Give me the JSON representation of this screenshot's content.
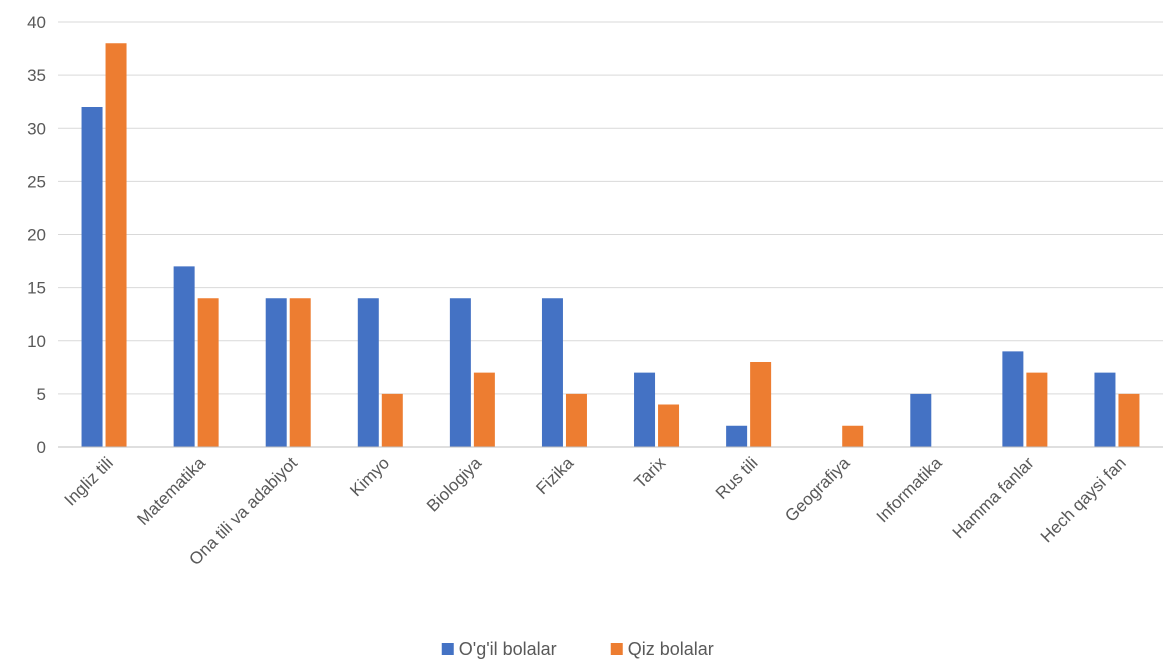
{
  "chart_data": {
    "type": "bar",
    "title": "",
    "xlabel": "",
    "ylabel": "",
    "ylim": [
      0,
      40
    ],
    "ytick_step": 5,
    "grid": true,
    "legend_position": "bottom",
    "categories": [
      "Ingliz tili",
      "Matematika",
      "Ona tili va adabiyot",
      "Kimyo",
      "Biologiya",
      "Fizika",
      "Tarix",
      "Rus tili",
      "Geografiya",
      "Informatika",
      "Hamma fanlar",
      "Hech qaysi fan"
    ],
    "series": [
      {
        "name": "O'g'il bolalar",
        "color": "#4472C4",
        "values": [
          32,
          17,
          14,
          14,
          14,
          14,
          7,
          2,
          0,
          5,
          9,
          7
        ]
      },
      {
        "name": "Qiz bolalar",
        "color": "#ED7D31",
        "values": [
          38,
          14,
          14,
          5,
          7,
          5,
          4,
          8,
          2,
          0,
          7,
          5
        ]
      }
    ]
  }
}
